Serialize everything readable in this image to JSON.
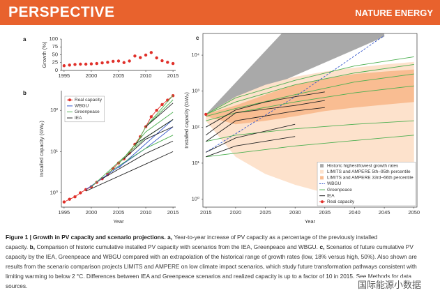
{
  "header": {
    "section": "PERSPECTIVE",
    "journal": "NATURE ENERGY"
  },
  "chart_data": [
    {
      "label": "a",
      "type": "scatter",
      "ylabel": "Growth (%)",
      "color": "#e0302a",
      "x": [
        1995,
        1996,
        1997,
        1998,
        1999,
        2000,
        2001,
        2002,
        2003,
        2004,
        2005,
        2006,
        2007,
        2008,
        2009,
        2010,
        2011,
        2012,
        2013,
        2014,
        2015
      ],
      "values": [
        15,
        17,
        19,
        20,
        20,
        21,
        22,
        24,
        26,
        29,
        30,
        25,
        30,
        46,
        41,
        49,
        57,
        40,
        31,
        26,
        22
      ],
      "xlim": [
        1994.5,
        2015.5
      ],
      "xticks": [
        1995,
        2000,
        2005,
        2010,
        2015
      ],
      "ylim": [
        0,
        100
      ],
      "yticks": [
        0,
        25,
        50,
        75,
        100
      ]
    },
    {
      "label": "b",
      "type": "line",
      "log_y": true,
      "ylabel": "Installed capacity (GWₚ)",
      "xlabel": "Year",
      "legend": "upper left",
      "xlim": [
        1994.5,
        2015.5
      ],
      "xticks": [
        1995,
        2000,
        2005,
        2010,
        2015
      ],
      "ylim": [
        0.45,
        300
      ],
      "yticks": [
        {
          "value": 1,
          "label": "10⁰"
        },
        {
          "value": 10,
          "label": "10¹"
        },
        {
          "value": 100,
          "label": "10²"
        }
      ],
      "series": [
        {
          "name": "Real capacity",
          "color": "#e0302a",
          "marker": true,
          "lines": [
            {
              "x": [
                1995,
                1996,
                1997,
                1998,
                1999,
                2000,
                2001,
                2002,
                2003,
                2004,
                2005,
                2006,
                2007,
                2008,
                2009,
                2010,
                2011,
                2012,
                2013,
                2014,
                2015
              ],
              "values": [
                0.6,
                0.7,
                0.8,
                1.0,
                1.2,
                1.4,
                1.8,
                2.2,
                2.8,
                3.9,
                5.3,
                6.7,
                9.2,
                15,
                23,
                40,
                70,
                100,
                138,
                177,
                227
              ]
            }
          ]
        },
        {
          "name": "WBGU",
          "color": "#3355cc",
          "lines": [
            {
              "x": [
                1999,
                2010,
                2015
              ],
              "values": [
                1.2,
                12,
                40
              ]
            },
            {
              "x": [
                2005,
                2015
              ],
              "values": [
                4,
                60
              ]
            }
          ]
        },
        {
          "name": "Greenpeace",
          "color": "#4caf50",
          "lines": [
            {
              "x": [
                2000,
                2010,
                2015
              ],
              "values": [
                1.4,
                22,
                60
              ]
            },
            {
              "x": [
                2005,
                2010,
                2015
              ],
              "values": [
                5,
                30,
                90
              ]
            },
            {
              "x": [
                2008,
                2010,
                2015
              ],
              "values": [
                13,
                40,
                180
              ]
            },
            {
              "x": [
                2010,
                2015
              ],
              "values": [
                40,
                230
              ]
            },
            {
              "x": [
                2003,
                2010,
                2015
              ],
              "values": [
                3,
                12,
                25
              ]
            }
          ]
        },
        {
          "name": "IEA",
          "color": "#222222",
          "lines": [
            {
              "x": [
                1999,
                2010,
                2015
              ],
              "values": [
                1.1,
                5,
                10
              ]
            },
            {
              "x": [
                2002,
                2010,
                2015
              ],
              "values": [
                2.2,
                9,
                18
              ]
            },
            {
              "x": [
                2006,
                2010,
                2015
              ],
              "values": [
                6.7,
                20,
                40
              ]
            },
            {
              "x": [
                2008,
                2015
              ],
              "values": [
                15,
                60
              ]
            },
            {
              "x": [
                2010,
                2015
              ],
              "values": [
                40,
                150
              ]
            }
          ]
        }
      ]
    },
    {
      "label": "c",
      "type": "line",
      "log_y": true,
      "ylabel": "Installed capacity (GWₚ)",
      "xlabel": "Year",
      "legend": "lower right",
      "xlim": [
        2014.5,
        2050.5
      ],
      "xticks": [
        2015,
        2020,
        2025,
        2030,
        2035,
        2040,
        2045,
        2050
      ],
      "ylim": [
        0.6,
        40000
      ],
      "yticks": [
        {
          "value": 1,
          "label": "10⁰"
        },
        {
          "value": 10,
          "label": "10¹"
        },
        {
          "value": 100,
          "label": "10²"
        },
        {
          "value": 1000,
          "label": "10³"
        },
        {
          "value": 10000,
          "label": "10⁴"
        }
      ],
      "bands": [
        {
          "name": "Historic highest/lowest growth rates",
          "color": "#a9a9a9",
          "x": [
            2015,
            2020,
            2025,
            2030,
            2035,
            2040,
            2045
          ],
          "lower": [
            227,
            520,
            1190,
            2720,
            6220,
            14200,
            32600
          ],
          "upper": [
            227,
            1720,
            13100,
            99400,
            755000,
            5730000,
            43500000
          ]
        },
        {
          "name": "LIMITS and AMPERE 5th–95th percentile",
          "color": "#fde2cc",
          "x": [
            2015,
            2020,
            2025,
            2030,
            2035,
            2040,
            2045,
            2050
          ],
          "lower": [
            150,
            15,
            5,
            2.5,
            1.5,
            1,
            0.8,
            0.7
          ],
          "upper": [
            230,
            700,
            1500,
            2500,
            3500,
            4500,
            5500,
            6500
          ]
        },
        {
          "name": "LIMITS and AMPERE 33rd–66th percentile",
          "color": "#f9bd92",
          "x": [
            2015,
            2020,
            2025,
            2030,
            2035,
            2040,
            2045,
            2050
          ],
          "lower": [
            200,
            120,
            150,
            200,
            280,
            350,
            420,
            500
          ],
          "upper": [
            230,
            400,
            800,
            1500,
            2200,
            3000,
            3500,
            4000
          ]
        }
      ],
      "series": [
        {
          "name": "WBGU",
          "color": "#3355cc",
          "dash": true,
          "lines": [
            {
              "x": [
                2015,
                2030,
                2045
              ],
              "values": [
                20,
                700,
                35000
              ]
            }
          ]
        },
        {
          "name": "Greenpeace",
          "color": "#4caf50",
          "lines": [
            {
              "x": [
                2015,
                2020,
                2030,
                2040,
                2050
              ],
              "values": [
                227,
                650,
                2000,
                5000,
                9000
              ]
            },
            {
              "x": [
                2015,
                2020,
                2030,
                2040,
                2050
              ],
              "values": [
                227,
                500,
                1500,
                3200,
                5500
              ]
            },
            {
              "x": [
                2015,
                2020,
                2030,
                2040,
                2050
              ],
              "values": [
                200,
                330,
                800,
                1800,
                3000
              ]
            },
            {
              "x": [
                2015,
                2020,
                2030,
                2040,
                2050
              ],
              "values": [
                150,
                250,
                500,
                900,
                1400
              ]
            },
            {
              "x": [
                2015,
                2020,
                2030,
                2040,
                2050
              ],
              "values": [
                40,
                60,
                90,
                120,
                150
              ]
            },
            {
              "x": [
                2015,
                2030,
                2050
              ],
              "values": [
                15,
                30,
                60
              ]
            }
          ]
        },
        {
          "name": "IEA",
          "color": "#222222",
          "lines": [
            {
              "x": [
                2015,
                2020,
                2025,
                2030,
                2035
              ],
              "values": [
                100,
                300,
                500,
                700,
                950
              ]
            },
            {
              "x": [
                2015,
                2020,
                2030,
                2035
              ],
              "values": [
                60,
                250,
                400,
                550
              ]
            },
            {
              "x": [
                2015,
                2020,
                2030,
                2035
              ],
              "values": [
                40,
                150,
                280,
                350
              ]
            },
            {
              "x": [
                2015,
                2020,
                2030
              ],
              "values": [
                20,
                50,
                120
              ]
            },
            {
              "x": [
                2015,
                2020,
                2030
              ],
              "values": [
                15,
                30,
                55
              ]
            }
          ]
        },
        {
          "name": "Real capacity",
          "color": "#e0302a",
          "marker": true,
          "lines": [
            {
              "x": [
                2015
              ],
              "values": [
                227
              ]
            }
          ]
        }
      ]
    }
  ],
  "caption": [
    {
      "text": "Figure 1 | Growth in PV capacity and scenario projections.",
      "bold": true
    },
    {
      "text": "a,",
      "bold": true
    },
    {
      "text": "Year-to-year increase of PV capacity as a percentage of the previously installed capacity."
    },
    {
      "text": "b,",
      "bold": true
    },
    {
      "text": "Comparison of historic cumulative installed PV capacity with scenarios from the IEA, Greenpeace and WBGU."
    },
    {
      "text": "c,",
      "bold": true
    },
    {
      "text": "Scenarios of future cumulative PV capacity by the IEA, Greenpeace and WBGU compared with an extrapolation of the historical range of growth rates (low, 18% versus high, 50%). Also shown are results from the scenario comparison projects LIMITS and AMPERE on low climate impact scenarios, which study future transformation pathways consistent with limiting warming to below 2 °C. Differences between IEA and Greenpeace scenarios and realized capacity is up to a factor of 10 in 2015. See Methods for data sources."
    }
  ],
  "watermark": "国际能源小数据"
}
